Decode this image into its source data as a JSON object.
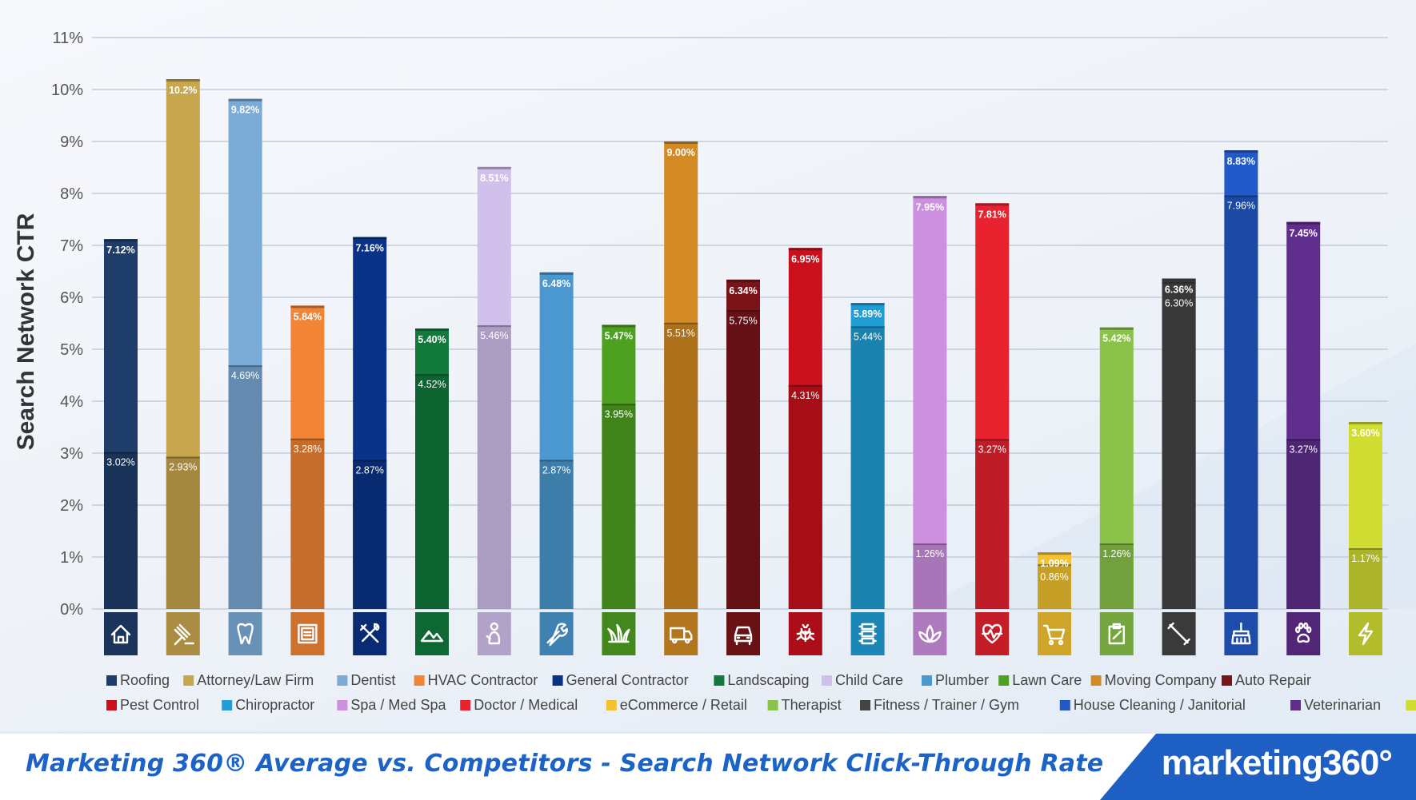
{
  "chart_data": {
    "type": "bar",
    "ylabel": "Search Network CTR",
    "ylim": [
      0,
      11
    ],
    "yticks": [
      "0%",
      "1%",
      "2%",
      "3%",
      "4%",
      "5%",
      "6%",
      "7%",
      "8%",
      "9%",
      "10%",
      "11%"
    ],
    "grid": true,
    "legend_position": "bottom",
    "categories": [
      {
        "name": "Roofing",
        "total": 7.12,
        "total_label": "7.12%",
        "inner": 3.02,
        "inner_label": "3.02%",
        "color": "#1e3d6b",
        "icon": "house-icon"
      },
      {
        "name": "Attorney/Law Firm",
        "total": 10.2,
        "total_label": "10.2%",
        "inner": 2.93,
        "inner_label": "2.93%",
        "color": "#c8a64e",
        "icon": "gavel-icon"
      },
      {
        "name": "Dentist",
        "total": 9.82,
        "total_label": "9.82%",
        "inner": 4.69,
        "inner_label": "4.69%",
        "color": "#7aaad6",
        "icon": "tooth-icon"
      },
      {
        "name": "HVAC Contractor",
        "total": 5.84,
        "total_label": "5.84%",
        "inner": 3.28,
        "inner_label": "3.28%",
        "color": "#f28535",
        "icon": "hvac-unit-icon"
      },
      {
        "name": "General Contractor",
        "total": 7.16,
        "total_label": "7.16%",
        "inner": 2.87,
        "inner_label": "2.87%",
        "color": "#0a3388",
        "icon": "tools-icon"
      },
      {
        "name": "Landscaping",
        "total": 5.4,
        "total_label": "5.40%",
        "inner": 4.52,
        "inner_label": "4.52%",
        "color": "#117a3b",
        "icon": "mountains-icon"
      },
      {
        "name": "Child Care",
        "total": 8.51,
        "total_label": "8.51%",
        "inner": 5.46,
        "inner_label": "5.46%",
        "color": "#d1bfec",
        "icon": "child-icon"
      },
      {
        "name": "Plumber",
        "total": 6.48,
        "total_label": "6.48%",
        "inner": 2.87,
        "inner_label": "2.87%",
        "color": "#4a98cf",
        "icon": "wrench-icon"
      },
      {
        "name": "Lawn Care",
        "total": 5.47,
        "total_label": "5.47%",
        "inner": 3.95,
        "inner_label": "3.95%",
        "color": "#4ea021",
        "icon": "grass-icon"
      },
      {
        "name": "Moving Company",
        "total": 9.0,
        "total_label": "9.00%",
        "inner": 5.51,
        "inner_label": "5.51%",
        "color": "#d38a22",
        "icon": "truck-icon"
      },
      {
        "name": "Auto Repair",
        "total": 6.34,
        "total_label": "6.34%",
        "inner": 5.75,
        "inner_label": "5.75%",
        "color": "#7b1419",
        "icon": "car-icon"
      },
      {
        "name": "Pest Control",
        "total": 6.95,
        "total_label": "6.95%",
        "inner": 4.31,
        "inner_label": "4.31%",
        "color": "#c9101c",
        "icon": "bug-icon"
      },
      {
        "name": "Chiropractor",
        "total": 5.89,
        "total_label": "5.89%",
        "inner": 5.44,
        "inner_label": "5.44%",
        "color": "#1f9fd6",
        "icon": "spine-icon"
      },
      {
        "name": "Spa / Med Spa",
        "total": 7.95,
        "total_label": "7.95%",
        "inner": 1.26,
        "inner_label": "1.26%",
        "color": "#cd8fe0",
        "icon": "lotus-icon"
      },
      {
        "name": "Doctor / Medical",
        "total": 7.81,
        "total_label": "7.81%",
        "inner": 3.27,
        "inner_label": "3.27%",
        "color": "#e8222f",
        "icon": "heartbeat-icon"
      },
      {
        "name": "eCommerce / Retail",
        "total": 1.09,
        "total_label": "1.09%",
        "inner": 0.86,
        "inner_label": "0.86%",
        "color": "#f2c230",
        "icon": "cart-icon"
      },
      {
        "name": "Therapist",
        "total": 5.42,
        "total_label": "5.42%",
        "inner": 1.26,
        "inner_label": "1.26%",
        "color": "#8bc34a",
        "icon": "clipboard-icon"
      },
      {
        "name": "Fitness / Trainer / Gym",
        "total": 6.36,
        "total_label": "6.36%",
        "inner": 6.3,
        "inner_label": "6.30%",
        "color": "#444444",
        "icon": "dumbbell-icon"
      },
      {
        "name": "House Cleaning / Janitorial",
        "total": 8.83,
        "total_label": "8.83%",
        "inner": 7.96,
        "inner_label": "7.96%",
        "color": "#2259c8",
        "icon": "broom-icon"
      },
      {
        "name": "Veterinarian",
        "total": 7.45,
        "total_label": "7.45%",
        "inner": 3.27,
        "inner_label": "3.27%",
        "color": "#5f2d8c",
        "icon": "paw-icon"
      },
      {
        "name": "Electrician",
        "total": 3.6,
        "total_label": "3.60%",
        "inner": 1.17,
        "inner_label": "1.17%",
        "color": "#d2dd33",
        "icon": "lightning-icon"
      }
    ]
  },
  "footer": {
    "title": "Marketing 360® Average vs. Competitors - Search Network Click-Through Rate",
    "logo_text": "marketing360°"
  }
}
